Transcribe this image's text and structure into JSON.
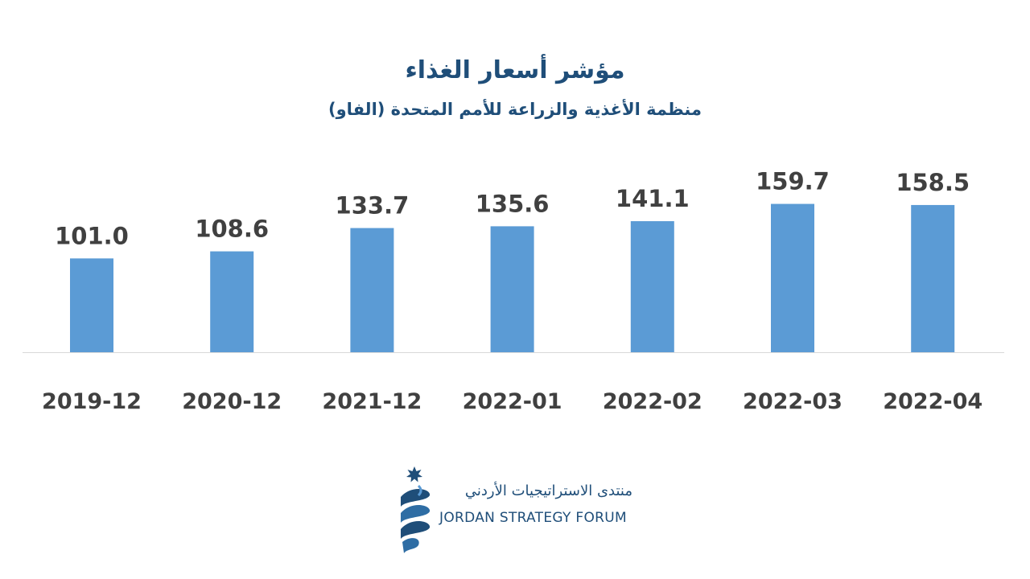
{
  "chart_data": {
    "type": "bar",
    "title": "مؤشر أسعار الغذاء",
    "subtitle": "منظمة الأغذية والزراعة للأمم المتحدة (الفاو)",
    "categories": [
      "2019-12",
      "2020-12",
      "2021-12",
      "2022-01",
      "2022-02",
      "2022-03",
      "2022-04"
    ],
    "values": [
      101.0,
      108.6,
      133.7,
      135.6,
      141.1,
      159.7,
      158.5
    ],
    "value_labels": [
      "101.0",
      "108.6",
      "133.7",
      "135.6",
      "141.1",
      "159.7",
      "158.5"
    ],
    "xlabel": "",
    "ylabel": "",
    "grid": false,
    "colors": {
      "bar": "#5b9bd5",
      "label": "#404040",
      "baseline": "#d9d9d9"
    }
  },
  "logo": {
    "arabic_name": "منتدى الاستراتيجيات الأردني",
    "english_name": "JORDAN STRATEGY FORUM",
    "colors": {
      "primary": "#1f4e79",
      "light": "#5b9bd5"
    }
  }
}
